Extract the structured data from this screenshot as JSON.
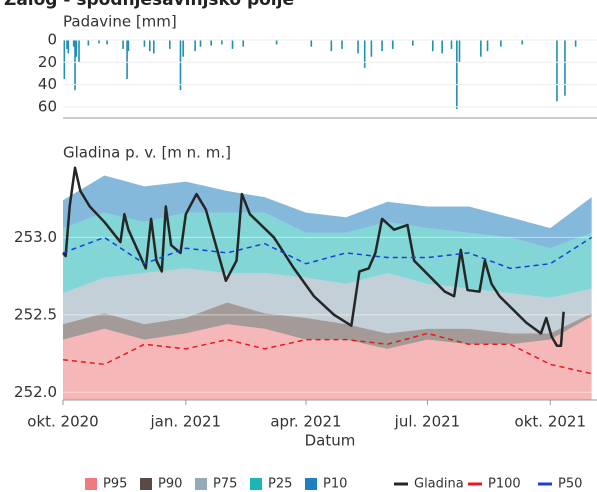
{
  "chart_data": [
    {
      "type": "bar",
      "title": "Zalog - spodnjesavinjsko polje",
      "ylabel": "Padavine [mm]",
      "color": "#1f8fb4",
      "inverted": true,
      "ylim": [
        0,
        70
      ],
      "yticks": [
        0,
        20,
        40,
        60
      ],
      "xlim": [
        "2020-10-01",
        "2021-11-05"
      ],
      "x": [
        "2020-10-02",
        "2020-10-04",
        "2020-10-05",
        "2020-10-09",
        "2020-10-10",
        "2020-10-11",
        "2020-10-13",
        "2020-10-20",
        "2020-10-28",
        "2020-11-03",
        "2020-11-15",
        "2020-11-18",
        "2020-11-19",
        "2020-12-01",
        "2020-12-05",
        "2020-12-08",
        "2020-12-20",
        "2020-12-28",
        "2020-12-30",
        "2021-01-08",
        "2021-01-12",
        "2021-01-20",
        "2021-01-28",
        "2021-02-05",
        "2021-02-13",
        "2021-03-10",
        "2021-04-05",
        "2021-04-20",
        "2021-04-28",
        "2021-05-10",
        "2021-05-15",
        "2021-05-20",
        "2021-05-28",
        "2021-06-05",
        "2021-06-20",
        "2021-07-05",
        "2021-07-12",
        "2021-07-19",
        "2021-07-23",
        "2021-07-25",
        "2021-08-10",
        "2021-08-15",
        "2021-08-25",
        "2021-09-10",
        "2021-10-06",
        "2021-10-12",
        "2021-10-20"
      ],
      "values": [
        35,
        8,
        12,
        6,
        45,
        15,
        20,
        5,
        3,
        4,
        8,
        35,
        10,
        6,
        10,
        12,
        8,
        45,
        15,
        10,
        6,
        5,
        4,
        8,
        6,
        4,
        6,
        10,
        8,
        12,
        25,
        15,
        10,
        8,
        5,
        10,
        12,
        8,
        62,
        20,
        15,
        10,
        6,
        4,
        55,
        50,
        6
      ]
    },
    {
      "type": "line",
      "ylabel": "Gladina p. v. [m n. m.]",
      "xlabel": "Datum",
      "grid": true,
      "ylim": [
        251.95,
        253.5
      ],
      "yticks": [
        {
          "value": 252.0,
          "label": "252.0"
        },
        252.5,
        {
          "value": 253.0,
          "label": "253.0"
        }
      ],
      "xlim": [
        "2020-10-01",
        "2021-11-05"
      ],
      "xticks": [
        {
          "value": "2020-10-01",
          "label": "okt. 2020"
        },
        {
          "value": "2021-01-01",
          "label": "jan. 2021"
        },
        {
          "value": "2021-04-01",
          "label": "apr. 2021"
        },
        {
          "value": "2021-07-01",
          "label": "jul. 2021"
        },
        {
          "value": "2021-10-01",
          "label": "okt. 2021"
        }
      ],
      "band_x": [
        "2020-10-01",
        "2020-11-01",
        "2020-12-01",
        "2021-01-01",
        "2021-02-01",
        "2021-03-01",
        "2021-04-01",
        "2021-05-01",
        "2021-06-01",
        "2021-07-01",
        "2021-08-01",
        "2021-09-01",
        "2021-10-01",
        "2021-11-01"
      ],
      "bands": [
        {
          "name": "P95",
          "color": "#ef7b7f",
          "values": [
            252.34,
            252.41,
            252.34,
            252.38,
            252.44,
            252.41,
            252.34,
            252.34,
            252.28,
            252.34,
            252.31,
            252.31,
            252.34,
            252.49
          ]
        },
        {
          "name": "P90",
          "color": "#5a4944",
          "values": [
            252.44,
            252.51,
            252.44,
            252.48,
            252.58,
            252.51,
            252.48,
            252.44,
            252.38,
            252.41,
            252.41,
            252.38,
            252.38,
            252.51
          ]
        },
        {
          "name": "P75",
          "color": "#94aab6",
          "values": [
            252.64,
            252.74,
            252.77,
            252.8,
            252.77,
            252.77,
            252.74,
            252.7,
            252.77,
            252.7,
            252.67,
            252.64,
            252.61,
            252.67
          ]
        },
        {
          "name": "P25",
          "color": "#1bb5b5",
          "values": [
            253.06,
            253.16,
            253.1,
            253.16,
            253.16,
            253.16,
            253.03,
            253.03,
            253.1,
            253.06,
            253.03,
            253.0,
            252.93,
            253.03
          ]
        },
        {
          "name": "P10",
          "color": "#1f7fc0",
          "values": [
            253.24,
            253.4,
            253.33,
            253.36,
            253.3,
            253.26,
            253.16,
            253.13,
            253.23,
            253.2,
            253.2,
            253.13,
            253.06,
            253.26
          ]
        }
      ],
      "series": [
        {
          "name": "Gladina",
          "color": "#262626",
          "x": [
            "2020-10-01",
            "2020-10-03",
            "2020-10-06",
            "2020-10-10",
            "2020-10-14",
            "2020-10-21",
            "2020-11-01",
            "2020-11-13",
            "2020-11-16",
            "2020-11-19",
            "2020-12-02",
            "2020-12-06",
            "2020-12-10",
            "2020-12-14",
            "2020-12-17",
            "2020-12-21",
            "2020-12-28",
            "2021-01-01",
            "2021-01-09",
            "2021-01-16",
            "2021-01-31",
            "2021-02-08",
            "2021-02-12",
            "2021-02-18",
            "2021-03-08",
            "2021-03-23",
            "2021-04-07",
            "2021-04-22",
            "2021-05-05",
            "2021-05-11",
            "2021-05-18",
            "2021-05-23",
            "2021-05-28",
            "2021-06-06",
            "2021-06-16",
            "2021-06-21",
            "2021-07-14",
            "2021-07-21",
            "2021-07-26",
            "2021-07-31",
            "2021-08-09",
            "2021-08-13",
            "2021-08-18",
            "2021-08-24",
            "2021-09-13",
            "2021-09-24",
            "2021-09-28",
            "2021-10-02",
            "2021-10-06",
            "2021-10-09",
            "2021-10-11"
          ],
          "values": [
            252.9,
            252.88,
            253.2,
            253.45,
            253.3,
            253.2,
            253.1,
            252.97,
            253.15,
            253.05,
            252.8,
            253.12,
            252.85,
            252.78,
            253.2,
            252.95,
            252.9,
            253.15,
            253.28,
            253.18,
            252.72,
            252.85,
            253.28,
            253.15,
            253.0,
            252.8,
            252.62,
            252.5,
            252.43,
            252.78,
            252.8,
            252.9,
            253.12,
            253.05,
            253.08,
            252.85,
            252.65,
            252.62,
            252.92,
            252.66,
            252.65,
            252.85,
            252.7,
            252.62,
            252.45,
            252.38,
            252.48,
            252.36,
            252.3,
            252.3,
            252.52
          ]
        },
        {
          "name": "P100",
          "color": "#e8191c",
          "dashed": true,
          "x": "band_x",
          "values": [
            252.21,
            252.18,
            252.31,
            252.28,
            252.34,
            252.28,
            252.34,
            252.34,
            252.31,
            252.38,
            252.31,
            252.31,
            252.18,
            252.12
          ]
        },
        {
          "name": "P50",
          "color": "#1a3fd6",
          "dashed": true,
          "x": "band_x",
          "values": [
            252.9,
            253.0,
            252.83,
            252.93,
            252.9,
            252.96,
            252.83,
            252.9,
            252.87,
            252.87,
            252.9,
            252.8,
            252.83,
            253.0
          ]
        }
      ]
    }
  ]
}
